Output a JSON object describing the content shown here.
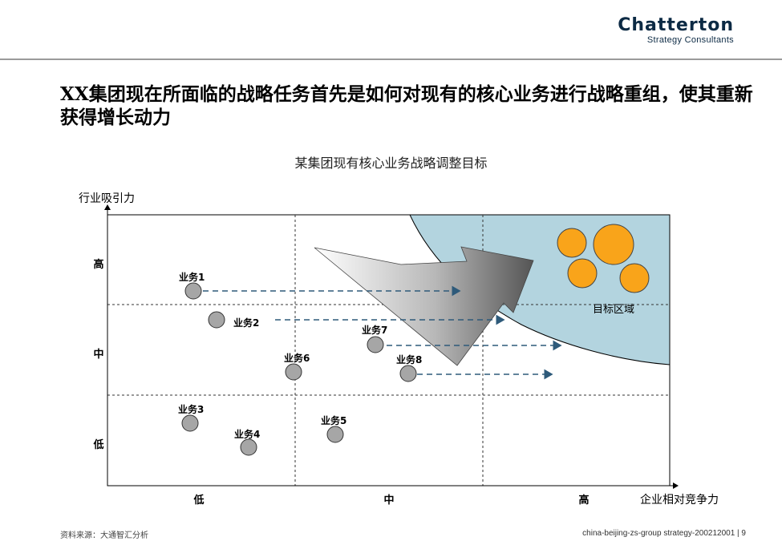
{
  "logo": {
    "name": "Chatterton",
    "subtitle": "Strategy Consultants"
  },
  "title": "XX集团现在所面临的战略任务首先是如何对现有的核心业务进行战略重组，使其重新获得增长动力",
  "chart_title": "某集团现有核心业务战略调整目标",
  "y_axis_label": "行业吸引力",
  "x_axis_label": "企业相对竞争力",
  "y_levels": [
    "高",
    "中",
    "低"
  ],
  "x_levels": [
    "低",
    "中",
    "高"
  ],
  "businesses": [
    {
      "label": "业务1"
    },
    {
      "label": "业务2"
    },
    {
      "label": "业务3"
    },
    {
      "label": "业务4"
    },
    {
      "label": "业务5"
    },
    {
      "label": "业务6"
    },
    {
      "label": "业务7"
    },
    {
      "label": "业务8"
    }
  ],
  "target_region_label": "目标区域",
  "colors": {
    "target_region": "#b3d4df",
    "target_circles": "#f9a41a",
    "business_circles": "#a6a6a6",
    "arrows": "#2e5a7a"
  },
  "footer": {
    "source": "资料来源：大通智汇分析",
    "reference": "china-beijing-zs-group strategy-200212001   |   9"
  }
}
